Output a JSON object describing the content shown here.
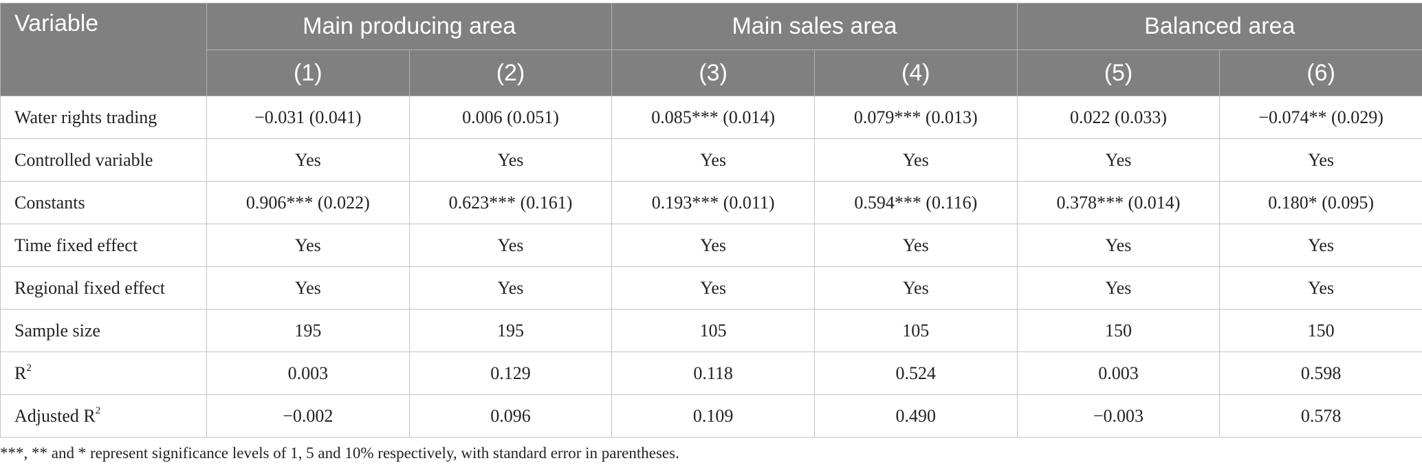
{
  "header": {
    "variable_label": "Variable",
    "groups": [
      "Main producing area",
      "Main sales area",
      "Balanced area"
    ],
    "columns": [
      "(1)",
      "(2)",
      "(3)",
      "(4)",
      "(5)",
      "(6)"
    ]
  },
  "rows": [
    {
      "label": "Water rights trading",
      "values": [
        "−0.031 (0.041)",
        "0.006 (0.051)",
        "0.085*** (0.014)",
        "0.079*** (0.013)",
        "0.022 (0.033)",
        "−0.074** (0.029)"
      ]
    },
    {
      "label": "Controlled variable",
      "values": [
        "Yes",
        "Yes",
        "Yes",
        "Yes",
        "Yes",
        "Yes"
      ]
    },
    {
      "label": "Constants",
      "values": [
        "0.906*** (0.022)",
        "0.623*** (0.161)",
        "0.193*** (0.011)",
        "0.594*** (0.116)",
        "0.378*** (0.014)",
        "0.180* (0.095)"
      ]
    },
    {
      "label": "Time fixed effect",
      "values": [
        "Yes",
        "Yes",
        "Yes",
        "Yes",
        "Yes",
        "Yes"
      ]
    },
    {
      "label": "Regional fixed effect",
      "values": [
        "Yes",
        "Yes",
        "Yes",
        "Yes",
        "Yes",
        "Yes"
      ]
    },
    {
      "label": "Sample size",
      "values": [
        "195",
        "195",
        "105",
        "105",
        "150",
        "150"
      ]
    },
    {
      "label": "R",
      "sup": "2",
      "values": [
        "0.003",
        "0.129",
        "0.118",
        "0.524",
        "0.003",
        "0.598"
      ]
    },
    {
      "label": "Adjusted R",
      "sup": "2",
      "values": [
        "−0.002",
        "0.096",
        "0.109",
        "0.490",
        "−0.003",
        "0.578"
      ]
    }
  ],
  "footnote": "***, ** and * represent significance levels of 1, 5 and 10% respectively, with standard error in parentheses."
}
